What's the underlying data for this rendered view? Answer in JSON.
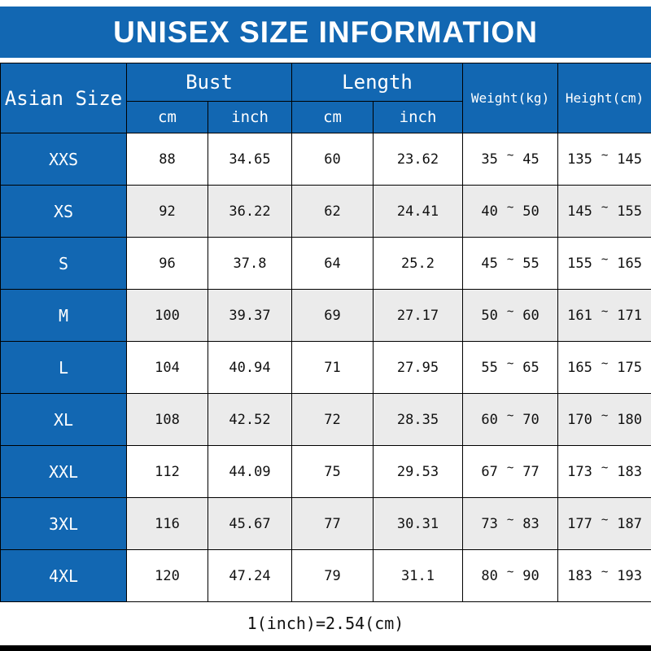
{
  "banner": {
    "title": "UNISEX SIZE INFORMATION"
  },
  "colors": {
    "blue": "#1267b2",
    "row_alt": "#ebebeb",
    "border": "#000000",
    "header_text": "#ffffff"
  },
  "table": {
    "corner_label": "Asian Size",
    "groups": {
      "bust": "Bust",
      "length": "Length",
      "weight": "Weight(kg)",
      "height": "Height(cm)"
    },
    "units": {
      "cm": "cm",
      "inch": "inch"
    },
    "range_separator": "~",
    "rows": [
      {
        "size": "XXS",
        "bust_cm": "88",
        "bust_inch": "34.65",
        "length_cm": "60",
        "length_inch": "23.62",
        "weight_min": "35",
        "weight_max": "45",
        "height_min": "135",
        "height_max": "145"
      },
      {
        "size": "XS",
        "bust_cm": "92",
        "bust_inch": "36.22",
        "length_cm": "62",
        "length_inch": "24.41",
        "weight_min": "40",
        "weight_max": "50",
        "height_min": "145",
        "height_max": "155"
      },
      {
        "size": "S",
        "bust_cm": "96",
        "bust_inch": "37.8",
        "length_cm": "64",
        "length_inch": "25.2",
        "weight_min": "45",
        "weight_max": "55",
        "height_min": "155",
        "height_max": "165"
      },
      {
        "size": "M",
        "bust_cm": "100",
        "bust_inch": "39.37",
        "length_cm": "69",
        "length_inch": "27.17",
        "weight_min": "50",
        "weight_max": "60",
        "height_min": "161",
        "height_max": "171"
      },
      {
        "size": "L",
        "bust_cm": "104",
        "bust_inch": "40.94",
        "length_cm": "71",
        "length_inch": "27.95",
        "weight_min": "55",
        "weight_max": "65",
        "height_min": "165",
        "height_max": "175"
      },
      {
        "size": "XL",
        "bust_cm": "108",
        "bust_inch": "42.52",
        "length_cm": "72",
        "length_inch": "28.35",
        "weight_min": "60",
        "weight_max": "70",
        "height_min": "170",
        "height_max": "180"
      },
      {
        "size": "XXL",
        "bust_cm": "112",
        "bust_inch": "44.09",
        "length_cm": "75",
        "length_inch": "29.53",
        "weight_min": "67",
        "weight_max": "77",
        "height_min": "173",
        "height_max": "183"
      },
      {
        "size": "3XL",
        "bust_cm": "116",
        "bust_inch": "45.67",
        "length_cm": "77",
        "length_inch": "30.31",
        "weight_min": "73",
        "weight_max": "83",
        "height_min": "177",
        "height_max": "187"
      },
      {
        "size": "4XL",
        "bust_cm": "120",
        "bust_inch": "47.24",
        "length_cm": "79",
        "length_inch": "31.1",
        "weight_min": "80",
        "weight_max": "90",
        "height_min": "183",
        "height_max": "193"
      }
    ]
  },
  "footer": {
    "note": "1(inch)=2.54(cm)"
  },
  "chart_data": {
    "type": "table",
    "title": "UNISEX SIZE INFORMATION",
    "columns": [
      "Asian Size",
      "Bust (cm)",
      "Bust (inch)",
      "Length (cm)",
      "Length (inch)",
      "Weight (kg)",
      "Height (cm)"
    ],
    "rows": [
      [
        "XXS",
        88,
        34.65,
        60,
        23.62,
        "35~45",
        "135~145"
      ],
      [
        "XS",
        92,
        36.22,
        62,
        24.41,
        "40~50",
        "145~155"
      ],
      [
        "S",
        96,
        37.8,
        64,
        25.2,
        "45~55",
        "155~165"
      ],
      [
        "M",
        100,
        39.37,
        69,
        27.17,
        "50~60",
        "161~171"
      ],
      [
        "L",
        104,
        40.94,
        71,
        27.95,
        "55~65",
        "165~175"
      ],
      [
        "XL",
        108,
        42.52,
        72,
        28.35,
        "60~70",
        "170~180"
      ],
      [
        "XXL",
        112,
        44.09,
        75,
        29.53,
        "67~77",
        "173~183"
      ],
      [
        "3XL",
        116,
        45.67,
        77,
        30.31,
        "73~83",
        "177~187"
      ],
      [
        "4XL",
        120,
        47.24,
        79,
        31.1,
        "80~90",
        "183~193"
      ]
    ],
    "note": "1(inch)=2.54(cm)",
    "layout": {
      "alternating_rows": true,
      "header_color": "#1267b2",
      "grid": true
    }
  }
}
